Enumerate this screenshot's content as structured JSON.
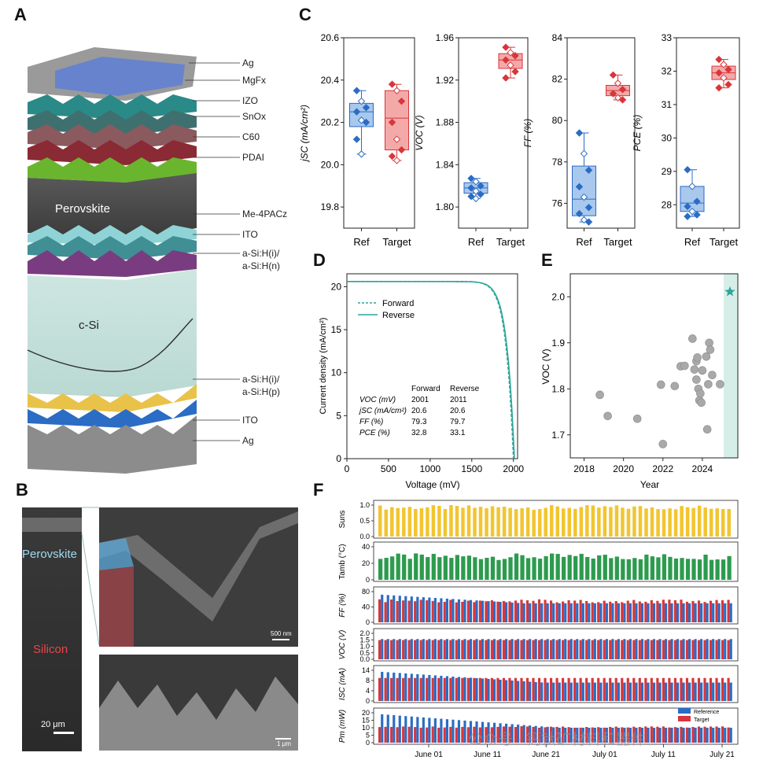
{
  "panels": {
    "A": "A",
    "B": "B",
    "C": "C",
    "D": "D",
    "E": "E",
    "F": "F"
  },
  "colors": {
    "ref": "#2b6cc4",
    "ref_fill": "#a9c8ee",
    "target": "#d8363a",
    "target_fill": "#f4a9a9",
    "teal": "#2ea59a",
    "yellow": "#f2c530",
    "green": "#2d9b4e",
    "grey_pt": "#a9a9a9"
  },
  "panelA": {
    "layers": [
      "Ag",
      "MgFx",
      "IZO",
      "SnOx",
      "C60",
      "PDAI",
      "Perovskite",
      "Me-4PACz",
      "ITO",
      "a-Si:H(i)/",
      "a-Si:H(n)",
      "c-Si",
      "a-Si:H(i)/",
      "a-Si:H(p)",
      "ITO",
      "Ag"
    ],
    "perovskite_label": "Perovskite",
    "csi_label": "c-Si"
  },
  "panelB": {
    "perovskite": "Perovskite",
    "silicon": "Silicon",
    "scale_left": "20 μm",
    "scale_top": "500 nm",
    "scale_bottom": "1 μm"
  },
  "chart_data": [
    {
      "id": "C-Jsc",
      "type": "box",
      "ylabel": "jSC (mA/cm²)",
      "ylim": [
        19.7,
        20.6
      ],
      "yticks": [
        "19.8",
        "20.0",
        "20.2",
        "20.4",
        "20.6"
      ],
      "categories": [
        "Ref",
        "Target"
      ],
      "series": [
        {
          "name": "Ref",
          "q1": 20.18,
          "median": 20.25,
          "q3": 20.29,
          "min": 20.05,
          "max": 20.35,
          "points": [
            20.35,
            20.3,
            20.27,
            20.25,
            20.21,
            20.2,
            20.12,
            20.05
          ]
        },
        {
          "name": "Target",
          "q1": 20.07,
          "median": 20.22,
          "q3": 20.35,
          "min": 20.02,
          "max": 20.38,
          "points": [
            20.38,
            20.35,
            20.3,
            20.2,
            20.12,
            20.07,
            20.04,
            20.02
          ]
        }
      ]
    },
    {
      "id": "C-Voc",
      "type": "box",
      "ylabel": "VOC (V)",
      "ylim": [
        1.78,
        1.96
      ],
      "yticks": [
        "1.80",
        "1.84",
        "1.88",
        "1.92",
        "1.96"
      ],
      "categories": [
        "Ref",
        "Target"
      ],
      "series": [
        {
          "name": "Ref",
          "q1": 1.813,
          "median": 1.818,
          "q3": 1.823,
          "min": 1.808,
          "max": 1.827,
          "points": [
            1.827,
            1.824,
            1.82,
            1.818,
            1.815,
            1.812,
            1.81,
            1.808
          ]
        },
        {
          "name": "Target",
          "q1": 1.931,
          "median": 1.939,
          "q3": 1.945,
          "min": 1.922,
          "max": 1.951,
          "points": [
            1.951,
            1.946,
            1.943,
            1.939,
            1.934,
            1.928,
            1.922
          ]
        }
      ]
    },
    {
      "id": "C-FF",
      "type": "box",
      "ylabel": "FF (%)",
      "ylim": [
        74.8,
        84
      ],
      "yticks": [
        "76",
        "78",
        "80",
        "82",
        "84"
      ],
      "categories": [
        "Ref",
        "Target"
      ],
      "series": [
        {
          "name": "Ref",
          "q1": 75.4,
          "median": 76.2,
          "q3": 77.8,
          "min": 75.1,
          "max": 79.4,
          "points": [
            79.4,
            78.4,
            77.6,
            76.8,
            76.3,
            75.8,
            75.5,
            75.2,
            75.1
          ]
        },
        {
          "name": "Target",
          "q1": 81.2,
          "median": 81.45,
          "q3": 81.7,
          "min": 81.0,
          "max": 82.2,
          "points": [
            82.2,
            81.8,
            81.5,
            81.3,
            81.1,
            81.0
          ]
        }
      ]
    },
    {
      "id": "C-PCE",
      "type": "box",
      "ylabel": "PCE (%)",
      "ylim": [
        27.3,
        33
      ],
      "yticks": [
        "28",
        "29",
        "30",
        "31",
        "32",
        "33"
      ],
      "categories": [
        "Ref",
        "Target"
      ],
      "series": [
        {
          "name": "Ref",
          "q1": 27.8,
          "median": 28.05,
          "q3": 28.55,
          "min": 27.65,
          "max": 29.05,
          "points": [
            29.05,
            28.55,
            28.1,
            27.95,
            27.8,
            27.7,
            27.65
          ]
        },
        {
          "name": "Target",
          "q1": 31.75,
          "median": 31.95,
          "q3": 32.15,
          "min": 31.5,
          "max": 32.35,
          "points": [
            32.35,
            32.2,
            32.05,
            31.95,
            31.8,
            31.6,
            31.5
          ]
        }
      ]
    },
    {
      "id": "D",
      "type": "line",
      "xlabel": "Voltage (mV)",
      "ylabel": "Current density (mA/cm²)",
      "xlim": [
        0,
        2050
      ],
      "ylim": [
        0,
        21.5
      ],
      "xticks": [
        "0",
        "500",
        "1000",
        "1500",
        "2000"
      ],
      "yticks": [
        "0",
        "5",
        "10",
        "15",
        "20"
      ],
      "legend": [
        "Forward",
        "Reverse"
      ],
      "table": {
        "headers": [
          "",
          "Forward",
          "Reverse"
        ],
        "rows": [
          [
            "VOC (mV)",
            "2001",
            "2011"
          ],
          [
            "jSC (mA/cm²)",
            "20.6",
            "20.6"
          ],
          [
            "FF (%)",
            "79.3",
            "79.7"
          ],
          [
            "PCE (%)",
            "32.8",
            "33.1"
          ]
        ]
      },
      "series": [
        {
          "name": "Forward",
          "voc": 2001,
          "jsc": 20.6
        },
        {
          "name": "Reverse",
          "voc": 2011,
          "jsc": 20.6
        }
      ]
    },
    {
      "id": "E",
      "type": "scatter",
      "xlabel": "Year",
      "ylabel": "VOC (V)",
      "xlim": [
        2017.3,
        2025.8
      ],
      "ylim": [
        1.65,
        2.05
      ],
      "xticks": [
        "2018",
        "2020",
        "2022",
        "2024"
      ],
      "yticks": [
        "1.7",
        "1.8",
        "1.9",
        "2.0"
      ],
      "points": [
        [
          2018.8,
          1.787
        ],
        [
          2019.2,
          1.741
        ],
        [
          2020.7,
          1.735
        ],
        [
          2021.9,
          1.809
        ],
        [
          2022.0,
          1.68
        ],
        [
          2022.6,
          1.806
        ],
        [
          2022.9,
          1.849
        ],
        [
          2023.1,
          1.85
        ],
        [
          2023.5,
          1.909
        ],
        [
          2023.6,
          1.842
        ],
        [
          2023.7,
          1.86
        ],
        [
          2023.75,
          1.868
        ],
        [
          2023.7,
          1.82
        ],
        [
          2023.8,
          1.8
        ],
        [
          2023.85,
          1.775
        ],
        [
          2023.95,
          1.77
        ],
        [
          2023.9,
          1.79
        ],
        [
          2024.0,
          1.84
        ],
        [
          2024.2,
          1.87
        ],
        [
          2024.3,
          1.81
        ],
        [
          2024.35,
          1.9
        ],
        [
          2024.4,
          1.885
        ],
        [
          2024.5,
          1.83
        ],
        [
          2024.25,
          1.712
        ],
        [
          2024.9,
          1.81
        ]
      ],
      "highlight": [
        2025.4,
        2.011
      ]
    },
    {
      "id": "F",
      "type": "timeseries",
      "xticks": [
        "June 01",
        "June 11",
        "June 21",
        "July 01",
        "July 11",
        "July 21"
      ],
      "rows": [
        {
          "label": "Suns",
          "yticks": [
            "0.0",
            "0.5",
            "1.0"
          ]
        },
        {
          "label": "Tamb (°C)",
          "yticks": [
            "0",
            "20",
            "40"
          ]
        },
        {
          "label": "FF (%)",
          "yticks": [
            "0",
            "40",
            "80"
          ]
        },
        {
          "label": "VOC (V)",
          "yticks": [
            "0.0",
            "0.5",
            "1.0",
            "1.5",
            "2.0"
          ]
        },
        {
          "label": "ISC (mA)",
          "yticks": [
            "0",
            "4",
            "8",
            "14"
          ]
        },
        {
          "label": "Pm (mW)",
          "yticks": [
            "0",
            "5",
            "10",
            "15",
            "20"
          ]
        }
      ],
      "legend": [
        "Reference",
        "Target"
      ]
    }
  ],
  "watermark": "公众号 · 钙钛矿材料和器件"
}
